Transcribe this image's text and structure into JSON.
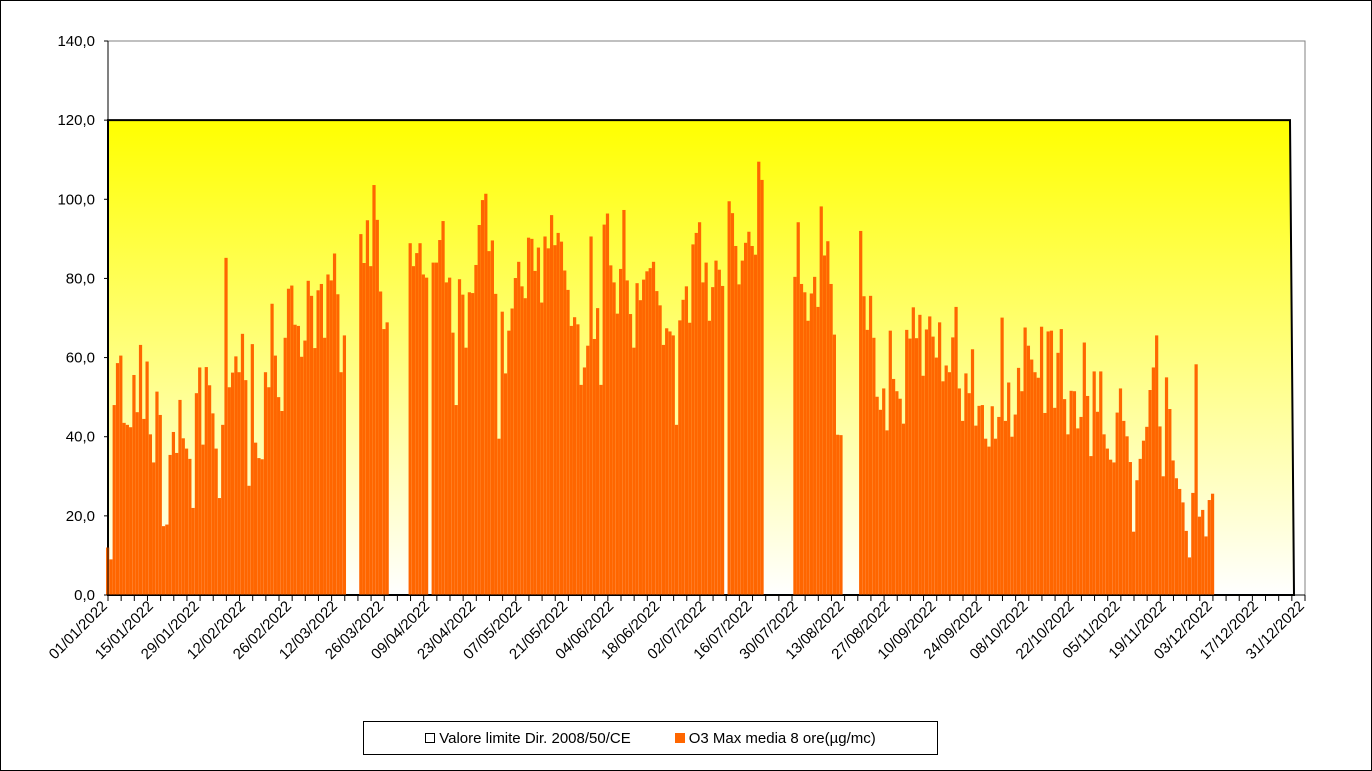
{
  "chart_data": {
    "type": "bar",
    "title": "",
    "xlabel": "",
    "ylabel": "",
    "ylim": [
      0,
      140
    ],
    "yticks": [
      "0,0",
      "20,0",
      "40,0",
      "60,0",
      "80,0",
      "100,0",
      "120,0",
      "140,0"
    ],
    "x_start": "2022-01-01",
    "x_end": "2022-12-31",
    "xticks": [
      "01/01/2022",
      "15/01/2022",
      "29/01/2022",
      "12/02/2022",
      "26/02/2022",
      "12/03/2022",
      "26/03/2022",
      "09/04/2022",
      "23/04/2022",
      "07/05/2022",
      "21/05/2022",
      "04/06/2022",
      "18/06/2022",
      "02/07/2022",
      "16/07/2022",
      "30/07/2022",
      "13/08/2022",
      "27/08/2022",
      "10/09/2022",
      "24/09/2022",
      "08/10/2022",
      "22/10/2022",
      "05/11/2022",
      "19/11/2022",
      "03/12/2022",
      "17/12/2022",
      "31/12/2022"
    ],
    "limit": {
      "name": "Valore limite Dir. 2008/50/CE",
      "value": 120,
      "color": "#ffff00"
    },
    "series": [
      {
        "name": "O3 Max media 8 ore(µg/mc)",
        "color": "#ff6600",
        "values": [
          12.0,
          9.0,
          48.0,
          58.6,
          60.5,
          43.5,
          43.0,
          42.4,
          55.6,
          46.2,
          63.2,
          44.5,
          59.0,
          40.6,
          33.5,
          51.4,
          45.5,
          17.4,
          17.8,
          35.4,
          41.2,
          35.9,
          49.3,
          39.6,
          37.0,
          34.4,
          22.0,
          51.0,
          57.5,
          38.0,
          57.6,
          53.0,
          45.9,
          37.0,
          24.5,
          43.0,
          85.2,
          52.5,
          56.2,
          60.3,
          56.3,
          66.0,
          54.3,
          27.6,
          63.4,
          38.5,
          34.6,
          34.3,
          56.3,
          52.5,
          73.6,
          60.5,
          50.0,
          46.5,
          65.0,
          77.4,
          78.2,
          68.3,
          68.0,
          60.2,
          64.3,
          79.4,
          75.6,
          62.4,
          77.0,
          78.6,
          65.0,
          81.0,
          79.5,
          86.3,
          76.0,
          56.3,
          65.6,
          null,
          null,
          null,
          null,
          91.2,
          83.9,
          94.7,
          83.1,
          103.6,
          94.8,
          76.7,
          67.2,
          68.9,
          null,
          null,
          null,
          null,
          null,
          null,
          88.9,
          83.1,
          86.4,
          88.9,
          81.0,
          80.2,
          null,
          84.0,
          84.0,
          89.7,
          94.5,
          79.0,
          80.2,
          66.3,
          48.0,
          79.8,
          75.9,
          62.5,
          76.5,
          76.3,
          83.4,
          93.5,
          99.8,
          101.4,
          86.9,
          89.6,
          76.1,
          39.5,
          71.6,
          56.0,
          66.8,
          72.4,
          80.1,
          84.2,
          78.0,
          75.0,
          90.3,
          90.0,
          81.9,
          87.8,
          73.9,
          90.6,
          87.6,
          96.0,
          88.4,
          91.5,
          89.3,
          82.0,
          77.1,
          68.0,
          70.2,
          68.4,
          53.1,
          57.5,
          63.0,
          90.6,
          64.7,
          72.5,
          53.1,
          93.6,
          96.4,
          83.3,
          79.0,
          71.1,
          82.4,
          97.3,
          79.5,
          71.0,
          62.5,
          78.8,
          74.5,
          79.7,
          81.8,
          82.6,
          84.2,
          76.8,
          73.2,
          63.2,
          67.4,
          66.6,
          65.6,
          43.0,
          69.4,
          74.6,
          78.0,
          68.8,
          88.6,
          91.5,
          94.2,
          79.0,
          84.0,
          69.3,
          77.8,
          84.5,
          82.2,
          78.1,
          null,
          99.5,
          96.5,
          88.2,
          78.5,
          84.5,
          89.0,
          91.8,
          88.2,
          86.0,
          109.5,
          104.9,
          null,
          null,
          null,
          null,
          null,
          null,
          null,
          null,
          null,
          80.4,
          94.2,
          78.6,
          76.5,
          69.3,
          76.2,
          80.4,
          72.8,
          98.2,
          85.8,
          89.4,
          78.6,
          65.8,
          40.5,
          40.4,
          null,
          null,
          null,
          null,
          null,
          92.0,
          75.5,
          67.0,
          75.6,
          65.0,
          50.1,
          46.8,
          52.2,
          41.6,
          66.8,
          54.6,
          51.5,
          49.6,
          43.3,
          67.0,
          64.8,
          72.7,
          64.9,
          70.8,
          55.4,
          67.1,
          70.4,
          65.3,
          60.0,
          68.9,
          54.0,
          58.0,
          56.3,
          65.1,
          72.8,
          52.2,
          44.0,
          56.0,
          51.0,
          62.1,
          42.8,
          47.8,
          48.0,
          39.5,
          37.5,
          47.7,
          39.5,
          45.0,
          70.1,
          44.0,
          53.7,
          40.0,
          45.6,
          57.4,
          51.5,
          67.6,
          63.0,
          59.5,
          56.3,
          54.9,
          67.8,
          46.0,
          66.6,
          66.8,
          47.3,
          61.2,
          67.2,
          49.5,
          40.6,
          51.6,
          51.5,
          42.1,
          45.0,
          63.8,
          50.3,
          35.1,
          56.5,
          46.3,
          56.5,
          40.6,
          37.0,
          34.2,
          33.5,
          46.1,
          52.2,
          44.0,
          40.1,
          33.6,
          16.0,
          29.0,
          34.4,
          39.0,
          42.5,
          51.8,
          57.5,
          65.6,
          42.6,
          30.0,
          55.0,
          47.0,
          34.0,
          29.5,
          26.8,
          23.4,
          16.2,
          9.5,
          25.8,
          58.3,
          19.8,
          21.5,
          14.8,
          24.0,
          25.6,
          null,
          null,
          null,
          null,
          null,
          null,
          null,
          null,
          null,
          null,
          null,
          null,
          null,
          null,
          null,
          null,
          null,
          null,
          null,
          null,
          null,
          null,
          null,
          null,
          null,
          null,
          null,
          null,
          null,
          null,
          null,
          null,
          null,
          null,
          null,
          null,
          null,
          null,
          null,
          null
        ]
      }
    ],
    "legend": {
      "placement": "bottom",
      "entries": [
        "Valore limite Dir. 2008/50/CE",
        "O3 Max media 8 ore(µg/mc)"
      ]
    },
    "grid": false
  }
}
